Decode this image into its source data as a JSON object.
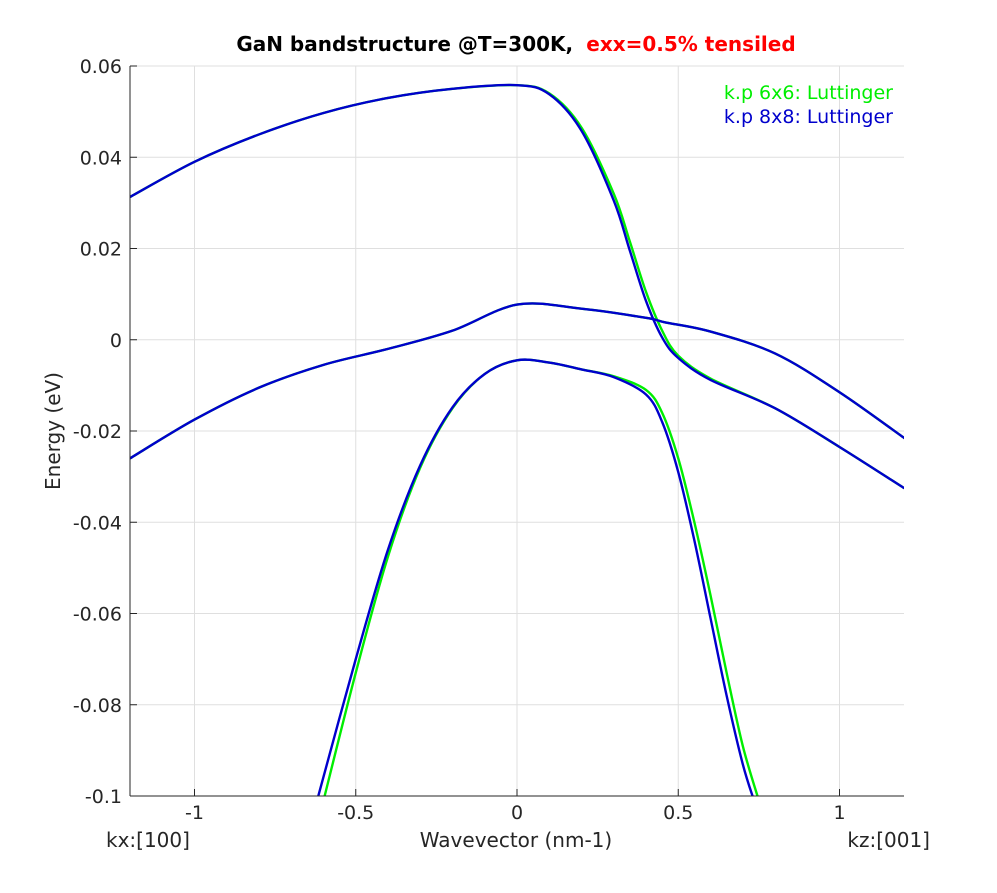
{
  "chart_data": {
    "type": "line",
    "title": "GaN bandstructure @T=300K,",
    "title_highlight": "exx=0.5% tensiled",
    "title_highlight_color": "#ff0000",
    "xlabel": "Wavevector (nm-1)",
    "ylabel": "Energy (eV)",
    "x_left_direction": "kx:[100]",
    "x_right_direction": "kz:[001]",
    "xlim": [
      -1.2,
      1.2
    ],
    "ylim": [
      -0.1,
      0.06
    ],
    "xticks": [
      -1,
      -0.5,
      0,
      0.5,
      1
    ],
    "xtick_labels": [
      "-1",
      "-0.5",
      "0",
      "0.5",
      "1"
    ],
    "yticks": [
      -0.1,
      -0.08,
      -0.06,
      -0.04,
      -0.02,
      0,
      0.02,
      0.04,
      0.06
    ],
    "ytick_labels": [
      "-0.1",
      "-0.08",
      "-0.06",
      "-0.04",
      "-0.02",
      "0",
      "0.02",
      "0.04",
      "0.06"
    ],
    "grid": true,
    "legend_position": "top-right",
    "series": [
      {
        "name": "k.p 6x6: Luttinger",
        "color": "#00ee00",
        "bands": [
          {
            "x": [
              -1.2,
              -1.0,
              -0.8,
              -0.6,
              -0.4,
              -0.2,
              0.0,
              0.1,
              0.2,
              0.3,
              0.35,
              0.4,
              0.45,
              0.5,
              0.6,
              0.8,
              1.0,
              1.2
            ],
            "y": [
              0.0313,
              0.039,
              0.045,
              0.0497,
              0.053,
              0.055,
              0.0558,
              0.054,
              0.0465,
              0.032,
              0.0215,
              0.0105,
              0.002,
              -0.0035,
              -0.0085,
              -0.015,
              -0.0235,
              -0.0325
            ]
          },
          {
            "x": [
              -1.2,
              -1.0,
              -0.8,
              -0.6,
              -0.4,
              -0.2,
              0.0,
              0.2,
              0.4,
              0.46,
              0.6,
              0.8,
              1.0,
              1.2
            ],
            "y": [
              -0.026,
              -0.0175,
              -0.0105,
              -0.0055,
              -0.002,
              0.002,
              0.0077,
              0.0068,
              0.0048,
              0.0038,
              0.0018,
              -0.003,
              -0.0115,
              -0.0215
            ]
          },
          {
            "x": [
              -0.6,
              -0.5,
              -0.4,
              -0.3,
              -0.2,
              -0.1,
              0.0,
              0.1,
              0.2,
              0.3,
              0.4,
              0.45,
              0.5,
              0.55,
              0.6,
              0.65,
              0.7,
              0.75
            ],
            "y": [
              -0.101,
              -0.073,
              -0.0475,
              -0.028,
              -0.015,
              -0.0075,
              -0.0045,
              -0.005,
              -0.0065,
              -0.008,
              -0.011,
              -0.016,
              -0.026,
              -0.04,
              -0.056,
              -0.073,
              -0.089,
              -0.101
            ]
          }
        ]
      },
      {
        "name": "k.p 8x8: Luttinger",
        "color": "#0000cc",
        "bands": [
          {
            "x": [
              -1.2,
              -1.0,
              -0.8,
              -0.6,
              -0.4,
              -0.2,
              0.0,
              0.1,
              0.2,
              0.3,
              0.35,
              0.4,
              0.45,
              0.5,
              0.6,
              0.8,
              1.0,
              1.2
            ],
            "y": [
              0.0313,
              0.039,
              0.045,
              0.0497,
              0.053,
              0.055,
              0.0558,
              0.0538,
              0.0458,
              0.0305,
              0.0195,
              0.0085,
              0.0005,
              -0.004,
              -0.0088,
              -0.015,
              -0.0235,
              -0.0325
            ]
          },
          {
            "x": [
              -1.2,
              -1.0,
              -0.8,
              -0.6,
              -0.4,
              -0.2,
              0.0,
              0.2,
              0.4,
              0.46,
              0.6,
              0.8,
              1.0,
              1.2
            ],
            "y": [
              -0.026,
              -0.0175,
              -0.0105,
              -0.0055,
              -0.002,
              0.002,
              0.0077,
              0.0068,
              0.0048,
              0.0038,
              0.0018,
              -0.003,
              -0.0115,
              -0.0215
            ]
          },
          {
            "x": [
              -0.62,
              -0.5,
              -0.4,
              -0.3,
              -0.2,
              -0.1,
              0.0,
              0.1,
              0.2,
              0.3,
              0.4,
              0.45,
              0.5,
              0.55,
              0.6,
              0.65,
              0.7,
              0.735
            ],
            "y": [
              -0.101,
              -0.07,
              -0.046,
              -0.0275,
              -0.0148,
              -0.0075,
              -0.0045,
              -0.005,
              -0.0065,
              -0.0082,
              -0.012,
              -0.018,
              -0.029,
              -0.044,
              -0.061,
              -0.078,
              -0.093,
              -0.101
            ]
          }
        ]
      }
    ]
  }
}
